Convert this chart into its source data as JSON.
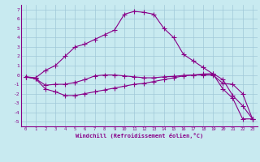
{
  "xlabel": "Windchill (Refroidissement éolien,°C)",
  "background_color": "#c8eaf0",
  "grid_color": "#a0c8d8",
  "line_color": "#880088",
  "xlim": [
    -0.5,
    23.5
  ],
  "ylim": [
    -5.5,
    7.5
  ],
  "xticks": [
    0,
    1,
    2,
    3,
    4,
    5,
    6,
    7,
    8,
    9,
    10,
    11,
    12,
    13,
    14,
    15,
    16,
    17,
    18,
    19,
    20,
    21,
    22,
    23
  ],
  "yticks": [
    -5,
    -4,
    -3,
    -2,
    -1,
    0,
    1,
    2,
    3,
    4,
    5,
    6,
    7
  ],
  "line1_x": [
    0,
    1,
    2,
    3,
    4,
    5,
    6,
    7,
    8,
    9,
    10,
    11,
    12,
    13,
    14,
    15,
    16,
    17,
    18,
    19,
    20,
    21,
    22,
    23
  ],
  "line1_y": [
    -0.2,
    -0.4,
    -1.5,
    -1.8,
    -2.2,
    -2.2,
    -2.0,
    -1.8,
    -1.6,
    -1.4,
    -1.2,
    -1.0,
    -0.9,
    -0.7,
    -0.5,
    -0.3,
    -0.1,
    0.0,
    0.1,
    0.15,
    -0.5,
    -2.2,
    -3.3,
    -4.7
  ],
  "line2_x": [
    0,
    1,
    2,
    3,
    4,
    5,
    6,
    7,
    8,
    9,
    10,
    11,
    12,
    13,
    14,
    15,
    16,
    17,
    18,
    19,
    20,
    21,
    22,
    23
  ],
  "line2_y": [
    -0.2,
    -0.4,
    -1.1,
    -1.0,
    -1.0,
    -0.8,
    -0.5,
    -0.1,
    0.0,
    0.0,
    -0.1,
    -0.2,
    -0.3,
    -0.3,
    -0.2,
    -0.15,
    -0.05,
    0.0,
    0.0,
    0.0,
    -0.9,
    -1.0,
    -2.0,
    -4.7
  ],
  "line3_x": [
    0,
    1,
    2,
    3,
    4,
    5,
    6,
    7,
    8,
    9,
    10,
    11,
    12,
    13,
    14,
    15,
    16,
    17,
    18,
    19,
    20,
    21,
    22,
    23
  ],
  "line3_y": [
    -0.2,
    -0.3,
    0.5,
    1.0,
    2.0,
    3.0,
    3.3,
    3.8,
    4.3,
    4.8,
    6.5,
    6.8,
    6.7,
    6.5,
    5.0,
    4.0,
    2.2,
    1.5,
    0.8,
    0.1,
    -1.5,
    -2.5,
    -4.7,
    -4.7
  ]
}
